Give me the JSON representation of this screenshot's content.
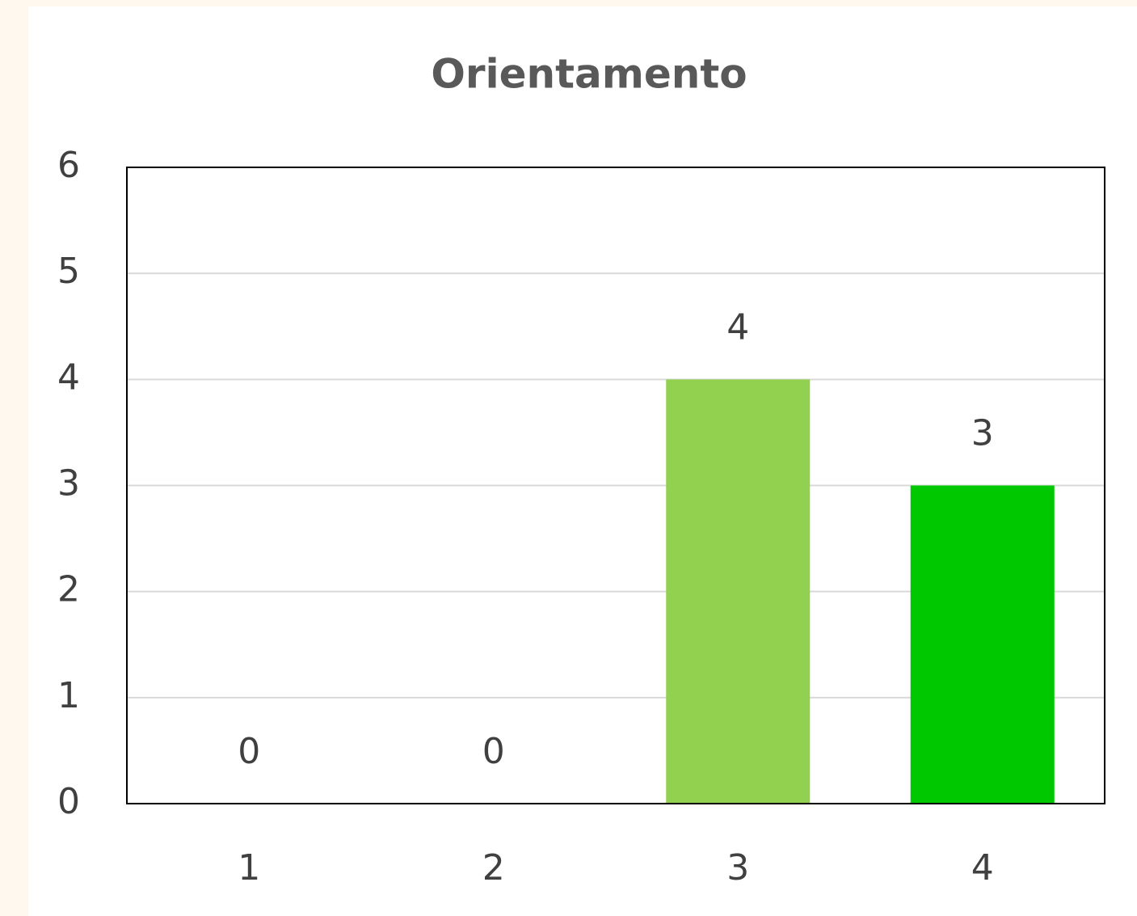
{
  "chart_data": {
    "type": "bar",
    "title": "Orientamento",
    "categories": [
      "1",
      "2",
      "3",
      "4"
    ],
    "values": [
      0,
      0,
      4,
      3
    ],
    "colors": [
      null,
      null,
      "#92d050",
      "#00c800"
    ],
    "ylim": [
      0,
      6
    ],
    "yticks": [
      0,
      1,
      2,
      3,
      4,
      5,
      6
    ],
    "grid": true
  }
}
